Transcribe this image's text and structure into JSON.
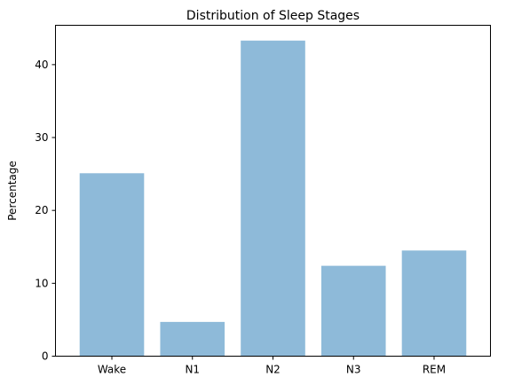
{
  "chart_data": {
    "type": "bar",
    "title": "Distribution of Sleep Stages",
    "xlabel": "",
    "ylabel": "Percentage",
    "categories": [
      "Wake",
      "N1",
      "N2",
      "N3",
      "REM"
    ],
    "values": [
      25.1,
      4.7,
      43.3,
      12.4,
      14.5
    ],
    "ylim": [
      0,
      45.4
    ],
    "yticks": [
      0,
      10,
      20,
      30,
      40
    ],
    "grid": false,
    "bar_color": "#8ebad9"
  }
}
